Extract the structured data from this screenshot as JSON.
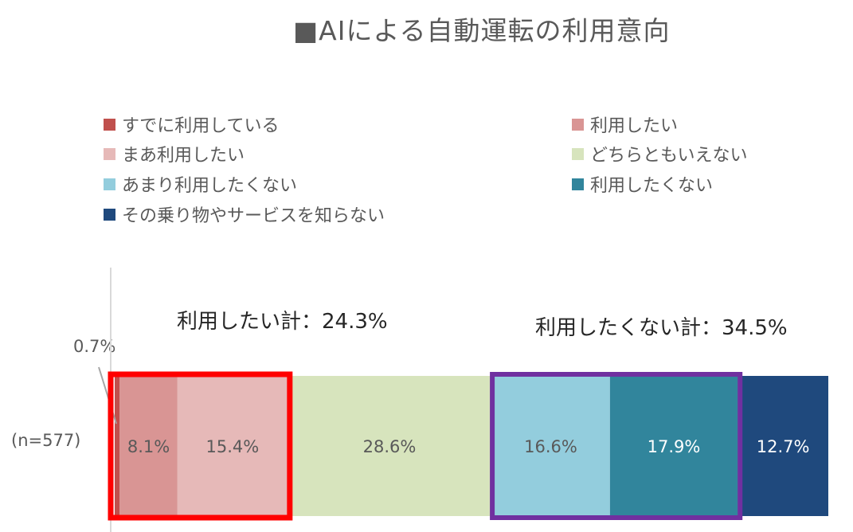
{
  "title": "■AIによる自動運転の利用意向",
  "chart_data": {
    "type": "bar",
    "orientation": "horizontal-stacked-100",
    "title": "■AIによる自動運転の利用意向",
    "categories": [
      "(n=577)"
    ],
    "series": [
      {
        "name": "すでに利用している",
        "values": [
          0.7
        ],
        "color": "#c0504d",
        "label": "0.7%"
      },
      {
        "name": "利用したい",
        "values": [
          8.1
        ],
        "color": "#d99594",
        "label": "8.1%"
      },
      {
        "name": "まあ利用したい",
        "values": [
          15.4
        ],
        "color": "#e6b9b8",
        "label": "15.4%"
      },
      {
        "name": "どちらともいえない",
        "values": [
          28.6
        ],
        "color": "#d7e4bd",
        "label": "28.6%"
      },
      {
        "name": "あまり利用したくない",
        "values": [
          16.6
        ],
        "color": "#93cddd",
        "label": "16.6%"
      },
      {
        "name": "利用したくない",
        "values": [
          17.9
        ],
        "color": "#31859c",
        "label": "17.9%"
      },
      {
        "name": "その乗り物やサービスを知らない",
        "values": [
          12.7
        ],
        "color": "#1f497d",
        "label": "12.7%"
      }
    ],
    "xlim": [
      0,
      100
    ],
    "legend_position": "top",
    "annotations": [
      {
        "text": "利用したい計：24.3%",
        "group_color": "#ff0000"
      },
      {
        "text": "利用したくない計：34.5%",
        "group_color": "#7030a0"
      }
    ]
  },
  "label_colors": {
    "dark_text": "#595959",
    "light_text": "#ffffff"
  }
}
